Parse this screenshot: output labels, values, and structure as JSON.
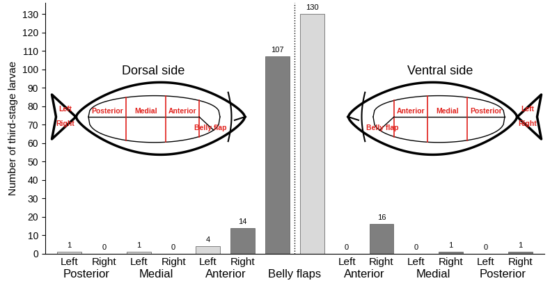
{
  "chart_data": {
    "type": "bar",
    "y_label": "Number of third-stage larvae",
    "categories": [
      "Left",
      "Right",
      "Left",
      "Right",
      "Left",
      "Right",
      null,
      null,
      "Left",
      "Right",
      "Left",
      "Right",
      "Left",
      "Right"
    ],
    "groups": [
      "Posterior",
      "Posterior",
      "Medial",
      "Medial",
      "Anterior",
      "Anterior",
      "Belly flaps",
      "Belly flaps",
      "Anterior",
      "Anterior",
      "Medial",
      "Medial",
      "Posterior",
      "Posterior"
    ],
    "values": [
      1,
      0,
      1,
      0,
      4,
      14,
      107,
      130,
      0,
      16,
      0,
      1,
      0,
      1
    ],
    "colors": [
      "#d9d9d9",
      "#7f7f7f",
      "#d9d9d9",
      "#7f7f7f",
      "#d9d9d9",
      "#7f7f7f",
      "#7f7f7f",
      "#d9d9d9",
      "#d9d9d9",
      "#7f7f7f",
      "#d9d9d9",
      "#7f7f7f",
      "#d9d9d9",
      "#7f7f7f"
    ],
    "ylim": [
      0,
      136
    ],
    "yticks": [
      0,
      10,
      20,
      30,
      40,
      50,
      60,
      70,
      80,
      90,
      100,
      110,
      120,
      130
    ],
    "data_labels": true,
    "annotations": [
      {
        "title": "Dorsal side",
        "region_labels": [
          "Left",
          "Right",
          "Posterior",
          "Medial",
          "Anterior",
          "Belly flap"
        ]
      },
      {
        "title": "Ventral side",
        "region_labels": [
          "Left",
          "Right",
          "Posterior",
          "Medial",
          "Anterior",
          "Belly flap"
        ]
      }
    ]
  }
}
